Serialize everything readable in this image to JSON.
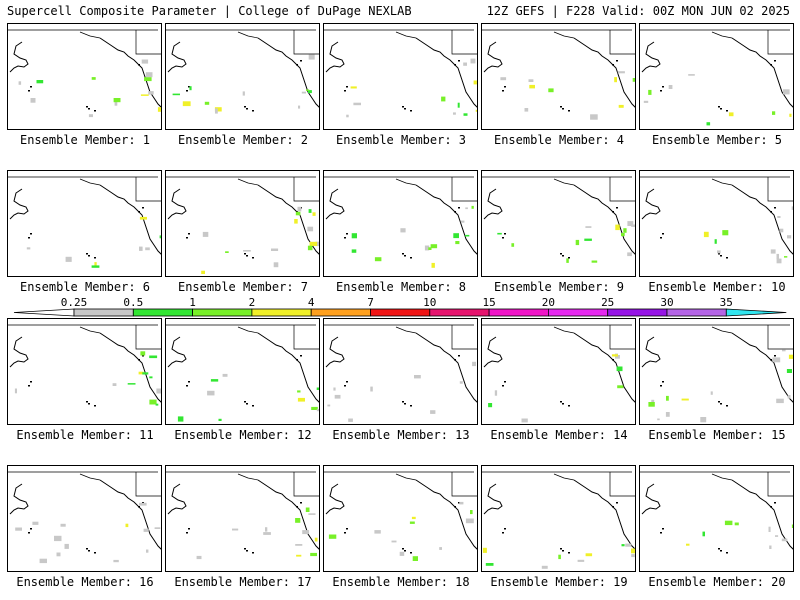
{
  "header": {
    "left": "Supercell Composite Parameter | College of DuPage NEXLAB",
    "right": "12Z GEFS | F228 Valid: 00Z MON JUN 02 2025"
  },
  "panels": [
    {
      "label": "Ensemble Member: 1"
    },
    {
      "label": "Ensemble Member: 2"
    },
    {
      "label": "Ensemble Member: 3"
    },
    {
      "label": "Ensemble Member: 4"
    },
    {
      "label": "Ensemble Member: 5"
    },
    {
      "label": "Ensemble Member: 6"
    },
    {
      "label": "Ensemble Member: 7"
    },
    {
      "label": "Ensemble Member: 8"
    },
    {
      "label": "Ensemble Member: 9"
    },
    {
      "label": "Ensemble Member: 10"
    },
    {
      "label": "Ensemble Member: 11"
    },
    {
      "label": "Ensemble Member: 12"
    },
    {
      "label": "Ensemble Member: 13"
    },
    {
      "label": "Ensemble Member: 14"
    },
    {
      "label": "Ensemble Member: 15"
    },
    {
      "label": "Ensemble Member: 16"
    },
    {
      "label": "Ensemble Member: 17"
    },
    {
      "label": "Ensemble Member: 18"
    },
    {
      "label": "Ensemble Member: 19"
    },
    {
      "label": "Ensemble Member: 20"
    }
  ],
  "colorbar": {
    "ticks": [
      "0.25",
      "0.5",
      "1",
      "2",
      "4",
      "7",
      "10",
      "15",
      "20",
      "25",
      "30",
      "35"
    ],
    "colors": [
      "#c8c8c8",
      "#32e632",
      "#78f028",
      "#f0f028",
      "#ffa01e",
      "#f01414",
      "#e6146e",
      "#f014c8",
      "#e628f0",
      "#9614e6",
      "#b464e6",
      "#32e6f0"
    ]
  }
}
